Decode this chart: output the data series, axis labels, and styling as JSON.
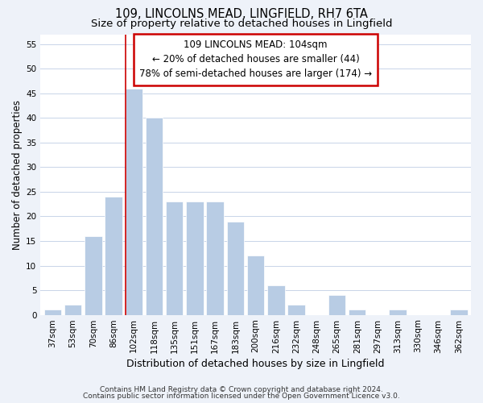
{
  "title": "109, LINCOLNS MEAD, LINGFIELD, RH7 6TA",
  "subtitle": "Size of property relative to detached houses in Lingfield",
  "xlabel": "Distribution of detached houses by size in Lingfield",
  "ylabel": "Number of detached properties",
  "bar_labels": [
    "37sqm",
    "53sqm",
    "70sqm",
    "86sqm",
    "102sqm",
    "118sqm",
    "135sqm",
    "151sqm",
    "167sqm",
    "183sqm",
    "200sqm",
    "216sqm",
    "232sqm",
    "248sqm",
    "265sqm",
    "281sqm",
    "297sqm",
    "313sqm",
    "330sqm",
    "346sqm",
    "362sqm"
  ],
  "bar_values": [
    1,
    2,
    16,
    24,
    46,
    40,
    23,
    23,
    23,
    19,
    12,
    6,
    2,
    0,
    4,
    1,
    0,
    1,
    0,
    0,
    1
  ],
  "bar_color": "#b8cce4",
  "bar_edge_color": "#ffffff",
  "highlight_bar_index": 4,
  "highlight_line_color": "#cc0000",
  "annotation_lines": [
    "109 LINCOLNS MEAD: 104sqm",
    "← 20% of detached houses are smaller (44)",
    "78% of semi-detached houses are larger (174) →"
  ],
  "ylim": [
    0,
    57
  ],
  "yticks": [
    0,
    5,
    10,
    15,
    20,
    25,
    30,
    35,
    40,
    45,
    50,
    55
  ],
  "footer_lines": [
    "Contains HM Land Registry data © Crown copyright and database right 2024.",
    "Contains public sector information licensed under the Open Government Licence v3.0."
  ],
  "background_color": "#eef2f9",
  "plot_background_color": "#ffffff",
  "grid_color": "#c8d4e8",
  "title_fontsize": 10.5,
  "subtitle_fontsize": 9.5,
  "axis_label_fontsize": 8.5,
  "tick_fontsize": 7.5,
  "footer_fontsize": 6.5
}
